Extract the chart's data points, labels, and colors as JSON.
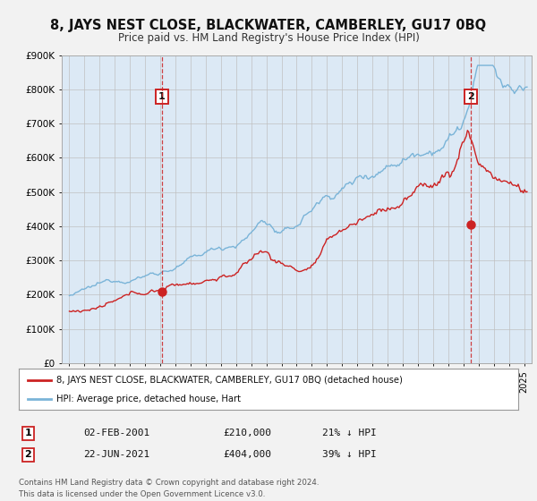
{
  "title": "8, JAYS NEST CLOSE, BLACKWATER, CAMBERLEY, GU17 0BQ",
  "subtitle": "Price paid vs. HM Land Registry's House Price Index (HPI)",
  "title_fontsize": 10.5,
  "subtitle_fontsize": 8.5,
  "xlim": [
    1994.5,
    2025.5
  ],
  "ylim": [
    0,
    900000
  ],
  "yticks": [
    0,
    100000,
    200000,
    300000,
    400000,
    500000,
    600000,
    700000,
    800000,
    900000
  ],
  "ytick_labels": [
    "£0",
    "£100K",
    "£200K",
    "£300K",
    "£400K",
    "£500K",
    "£600K",
    "£700K",
    "£800K",
    "£900K"
  ],
  "hpi_color": "#7ab4d8",
  "price_color": "#cc2222",
  "marker1_x": 2001.085,
  "marker1_y": 210000,
  "marker2_x": 2021.47,
  "marker2_y": 404000,
  "vline1_x": 2001.085,
  "vline2_x": 2021.47,
  "legend_label_price": "8, JAYS NEST CLOSE, BLACKWATER, CAMBERLEY, GU17 0BQ (detached house)",
  "legend_label_hpi": "HPI: Average price, detached house, Hart",
  "note1_label": "1",
  "note1_date": "02-FEB-2001",
  "note1_price": "£210,000",
  "note1_hpi": "21% ↓ HPI",
  "note2_label": "2",
  "note2_date": "22-JUN-2021",
  "note2_price": "£404,000",
  "note2_hpi": "39% ↓ HPI",
  "footer1": "Contains HM Land Registry data © Crown copyright and database right 2024.",
  "footer2": "This data is licensed under the Open Government Licence v3.0.",
  "fig_bg_color": "#f2f2f2",
  "plot_bg_color": "#dce9f5"
}
